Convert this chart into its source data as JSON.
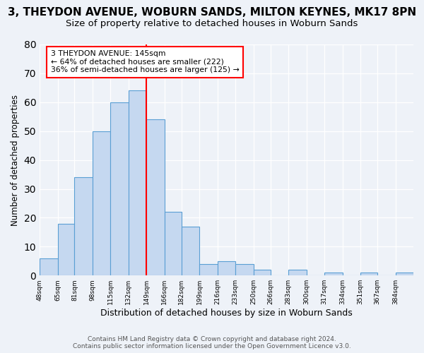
{
  "title": "3, THEYDON AVENUE, WOBURN SANDS, MILTON KEYNES, MK17 8PN",
  "subtitle": "Size of property relative to detached houses in Woburn Sands",
  "xlabel": "Distribution of detached houses by size in Woburn Sands",
  "ylabel": "Number of detached properties",
  "bar_values": [
    6,
    18,
    34,
    50,
    60,
    64,
    54,
    22,
    17,
    4,
    5,
    4,
    2,
    0,
    2,
    0,
    1,
    0,
    1,
    0,
    1
  ],
  "bar_labels": [
    "48sqm",
    "65sqm",
    "81sqm",
    "98sqm",
    "115sqm",
    "132sqm",
    "149sqm",
    "166sqm",
    "182sqm",
    "199sqm",
    "216sqm",
    "233sqm",
    "250sqm",
    "266sqm",
    "283sqm",
    "300sqm",
    "317sqm",
    "334sqm",
    "351sqm",
    "367sqm",
    "384sqm"
  ],
  "bin_edges": [
    48,
    65,
    81,
    98,
    115,
    132,
    149,
    166,
    182,
    199,
    216,
    233,
    250,
    266,
    283,
    300,
    317,
    334,
    351,
    367,
    384,
    401
  ],
  "bar_color": "#c5d8f0",
  "bar_edge_color": "#5a9fd4",
  "property_line_x": 149,
  "property_line_color": "red",
  "ylim": [
    0,
    80
  ],
  "yticks": [
    0,
    10,
    20,
    30,
    40,
    50,
    60,
    70,
    80
  ],
  "annotation_title": "3 THEYDON AVENUE: 145sqm",
  "annotation_line1": "← 64% of detached houses are smaller (222)",
  "annotation_line2": "36% of semi-detached houses are larger (125) →",
  "annotation_box_color": "white",
  "annotation_box_edge_color": "red",
  "footer_line1": "Contains HM Land Registry data © Crown copyright and database right 2024.",
  "footer_line2": "Contains public sector information licensed under the Open Government Licence v3.0.",
  "bg_color": "#eef2f8",
  "plot_bg_color": "#eef2f8",
  "title_fontsize": 11,
  "subtitle_fontsize": 9.5,
  "xlabel_fontsize": 9,
  "ylabel_fontsize": 8.5,
  "footer_fontsize": 6.5
}
